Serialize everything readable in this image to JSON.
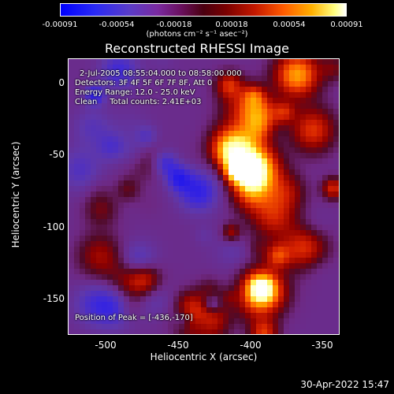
{
  "colorbar": {
    "ticks": [
      "-0.00091",
      "-0.00054",
      "-0.00018",
      "0.00018",
      "0.00054",
      "0.00091"
    ],
    "units": "(photons cm⁻² s⁻¹ asec⁻²)"
  },
  "title": "Reconstructed RHESSI Image",
  "info": {
    "time": "2-Jul-2005 08:55:04.000 to 08:58:00.000",
    "detectors": "Detectors: 3F 4F 5F 6F 7F 8F, Att 0",
    "energy": "Energy Range: 12.0 - 25.0 keV",
    "clean": "Clean     Total counts: 2.41E+03",
    "peak": "Position of Peak = [-436,-170]"
  },
  "axes": {
    "xlabel": "Heliocentric X (arcsec)",
    "ylabel": "Heliocentric Y (arcsec)",
    "xticks": [
      "-500",
      "-450",
      "-400",
      "-350"
    ],
    "yticks": [
      "0",
      "-50",
      "-100",
      "-150"
    ]
  },
  "datestamp": "30-Apr-2022 15:47",
  "colors": {
    "background": "#000000",
    "text": "#ffffff"
  }
}
